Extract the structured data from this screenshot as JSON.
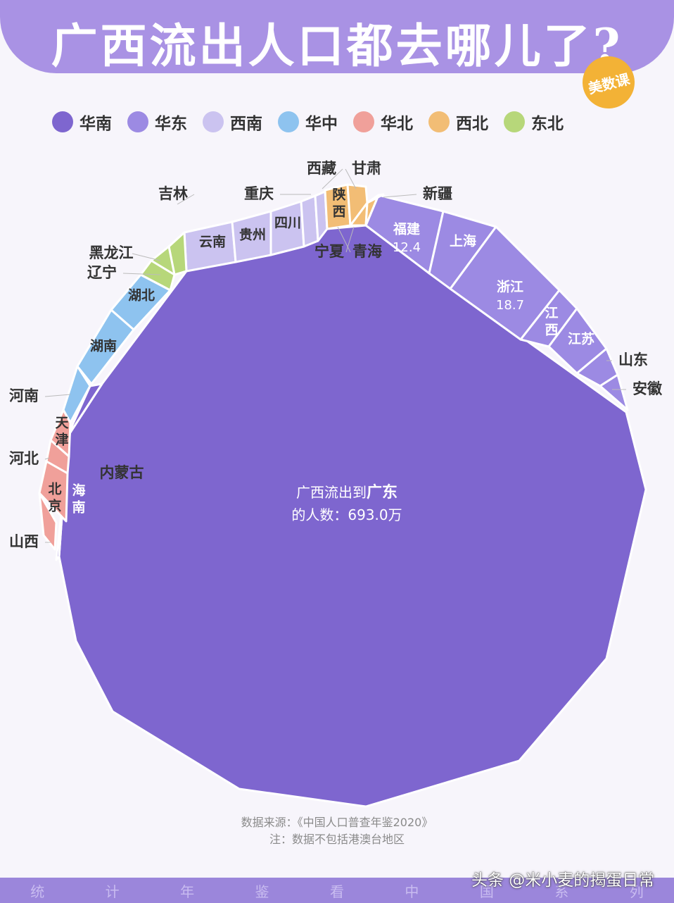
{
  "title": "广西流出人口都去哪儿了?",
  "badge": "美数课",
  "colors": {
    "华南": "#7e66cf",
    "华东": "#9c8ae3",
    "西南": "#cbc3f0",
    "华中": "#8ec3ef",
    "华北": "#f0a09a",
    "西北": "#f2bd75",
    "东北": "#b7d77a"
  },
  "legend": [
    {
      "label": "华南",
      "color": "#7e66cf"
    },
    {
      "label": "华东",
      "color": "#9c8ae3"
    },
    {
      "label": "西南",
      "color": "#cbc3f0"
    },
    {
      "label": "华中",
      "color": "#8ec3ef"
    },
    {
      "label": "华北",
      "color": "#f0a09a"
    },
    {
      "label": "西北",
      "color": "#f2bd75"
    },
    {
      "label": "东北",
      "color": "#b7d77a"
    }
  ],
  "chart_data": {
    "type": "treemap",
    "title": "广西流出人口都去哪儿了?",
    "unit": "万",
    "main_annotation": {
      "line1_prefix": "广西流出到",
      "line1_bold": "广东",
      "line2": "的人数：693.0万"
    },
    "regions": [
      {
        "name": "广东",
        "group": "华南",
        "value": 693.0
      },
      {
        "name": "海南",
        "group": "华南"
      },
      {
        "name": "福建",
        "group": "华东",
        "value": 12.4,
        "value_label": "12.4"
      },
      {
        "name": "上海",
        "group": "华东"
      },
      {
        "name": "浙江",
        "group": "华东",
        "value": 18.7,
        "value_label": "18.7"
      },
      {
        "name": "江西",
        "group": "华东"
      },
      {
        "name": "江苏",
        "group": "华东"
      },
      {
        "name": "山东",
        "group": "华东"
      },
      {
        "name": "安徽",
        "group": "华东"
      },
      {
        "name": "云南",
        "group": "西南"
      },
      {
        "name": "贵州",
        "group": "西南"
      },
      {
        "name": "四川",
        "group": "西南"
      },
      {
        "name": "重庆",
        "group": "西南"
      },
      {
        "name": "西藏",
        "group": "西南"
      },
      {
        "name": "湖北",
        "group": "华中"
      },
      {
        "name": "湖南",
        "group": "华中"
      },
      {
        "name": "河南",
        "group": "华中"
      },
      {
        "name": "天津",
        "group": "华北"
      },
      {
        "name": "河北",
        "group": "华北"
      },
      {
        "name": "北京",
        "group": "华北"
      },
      {
        "name": "山西",
        "group": "华北"
      },
      {
        "name": "内蒙古",
        "group": "华北"
      },
      {
        "name": "陕西",
        "group": "西北"
      },
      {
        "name": "甘肃",
        "group": "西北"
      },
      {
        "name": "宁夏",
        "group": "西北"
      },
      {
        "name": "青海",
        "group": "西北"
      },
      {
        "name": "新疆",
        "group": "西北"
      },
      {
        "name": "吉林",
        "group": "东北"
      },
      {
        "name": "黑龙江",
        "group": "东北"
      },
      {
        "name": "辽宁",
        "group": "东北"
      }
    ]
  },
  "source": "数据来源：《中国人口普查年鉴2020》",
  "note": "注：数据不包括港澳台地区",
  "footer_words": [
    "统",
    "计",
    "年",
    "鉴",
    "看",
    "中",
    "国",
    "系",
    "列"
  ],
  "watermark": "头条 @米小麦的揭蛋日常"
}
